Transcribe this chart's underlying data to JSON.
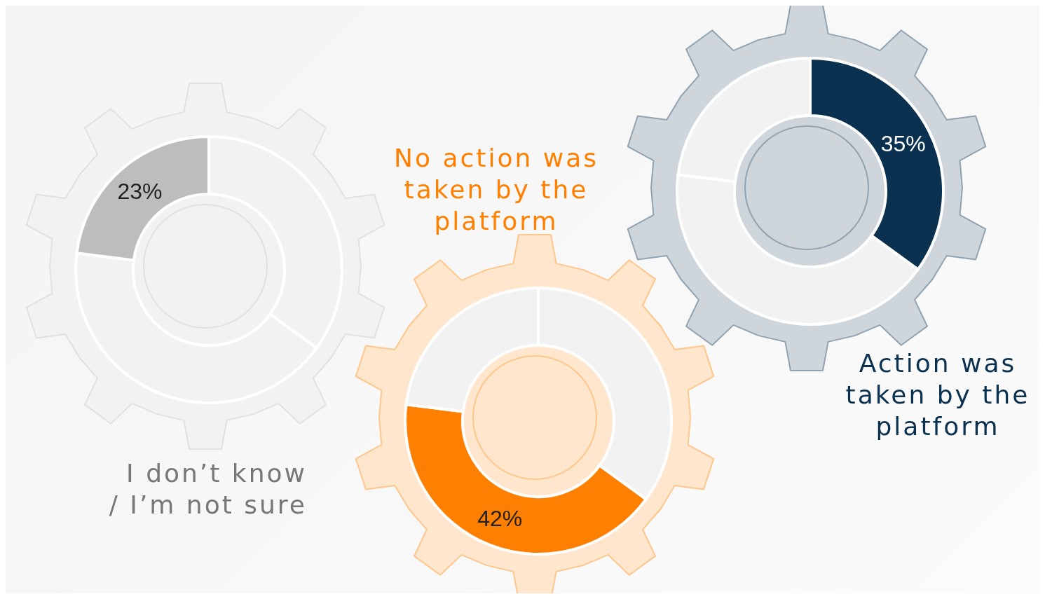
{
  "chart_data": [
    {
      "type": "donut",
      "title": "I don’t know\n/ I’m not sure",
      "categories": [
        null,
        null,
        null
      ],
      "values": [
        35,
        42,
        23
      ],
      "colors": [
        "#f2f2f2",
        "#f2f2f2",
        "#bdbdbd"
      ],
      "value_labels": [
        null,
        null,
        "23%"
      ]
    },
    {
      "type": "donut",
      "title": "No action was taken by the platform",
      "categories": [
        null,
        null,
        null
      ],
      "values": [
        35,
        42,
        23
      ],
      "colors": [
        "#f2f2f2",
        "#ff8000",
        "#f2f2f2"
      ],
      "value_labels": [
        null,
        "42%",
        null
      ]
    },
    {
      "type": "donut",
      "title": "Action was taken by the platform",
      "categories": [
        null,
        null,
        null
      ],
      "values": [
        35,
        42,
        23
      ],
      "colors": [
        "#0a3150",
        "#f2f2f2",
        "#f2f2f2"
      ],
      "value_labels": [
        "35%",
        null,
        null
      ]
    }
  ]
}
